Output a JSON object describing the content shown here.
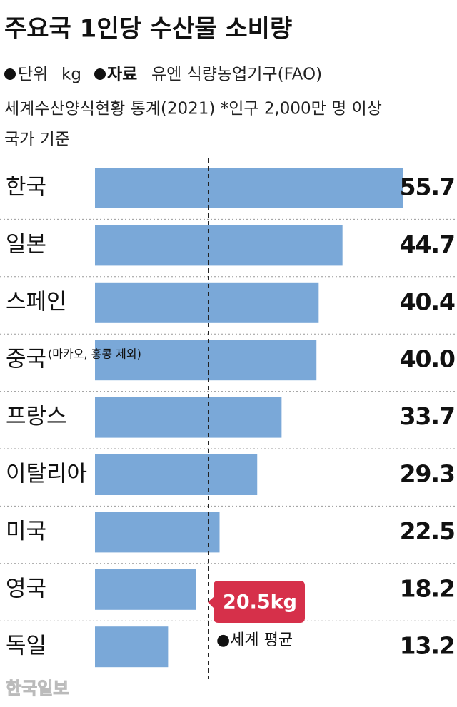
{
  "chart_data": {
    "type": "bar",
    "orientation": "horizontal",
    "title": "주요국 1인당 수산물 소비량",
    "unit_label": "단위",
    "unit": "kg",
    "source_label": "자료",
    "source_lines": [
      "유엔 식량농업기구(FAO)",
      "세계수산양식현황 통계(2021) *인구 2,000만 명 이상",
      "국가 기준"
    ],
    "categories": [
      "한국",
      "일본",
      "스페인",
      "중국",
      "프랑스",
      "이탈리아",
      "미국",
      "영국",
      "독일"
    ],
    "category_notes": [
      null,
      null,
      null,
      "(마카오, 홍콩 제외)",
      null,
      null,
      null,
      null,
      null
    ],
    "values": [
      55.7,
      44.7,
      40.4,
      40.0,
      33.7,
      29.3,
      22.5,
      18.2,
      13.2
    ],
    "value_labels": [
      "55.7",
      "44.7",
      "40.4",
      "40.0",
      "33.7",
      "29.3",
      "22.5",
      "18.2",
      "13.2"
    ],
    "color": "#7aa8d8",
    "xlim": [
      0,
      55.7
    ],
    "reference_line": {
      "value": 20.5,
      "label": "20.5kg",
      "name": "●세계 평균",
      "color": "#d6304a"
    },
    "watermark": "한국일보"
  }
}
